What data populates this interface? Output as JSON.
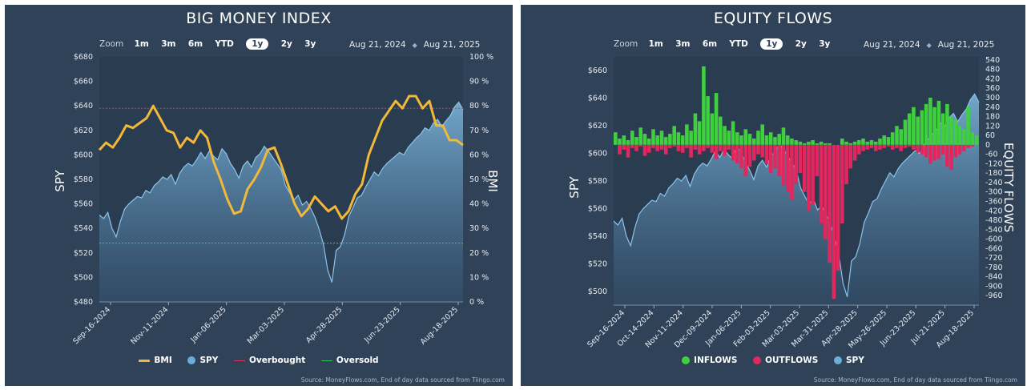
{
  "source_text": "Source: MoneyFlows.com, End of day data sourced from Tiingo.com",
  "zoom": {
    "label": "Zoom",
    "options": [
      "1m",
      "3m",
      "6m",
      "YTD",
      "1y",
      "2y",
      "3y"
    ],
    "active": "1y"
  },
  "range": {
    "from": "Aug 21, 2024",
    "to": "Aug 21, 2025"
  },
  "colors": {
    "bmi": "#f2b83a",
    "spy": "#6aaed9",
    "overbought": "#d9355f",
    "oversold": "#39c35a",
    "inflows": "#3fcf3f",
    "outflows": "#e0285f"
  },
  "chart_data": [
    {
      "type": "line",
      "title": "BIG MONEY INDEX",
      "ylabel": "SPY",
      "y2label": "BMI",
      "ylim": [
        480,
        680
      ],
      "y2lim": [
        0,
        100
      ],
      "y_ticks": [
        "$480",
        "$500",
        "$520",
        "$540",
        "$560",
        "$580",
        "$600",
        "$620",
        "$640",
        "$660",
        "$680"
      ],
      "y2_ticks": [
        "0 %",
        "10 %",
        "20 %",
        "30 %",
        "40 %",
        "50 %",
        "60 %",
        "70 %",
        "80 %",
        "90 %",
        "100 %"
      ],
      "x_ticks": [
        "Sep-16-2024",
        "Nov-11-2024",
        "Jan-06-2025",
        "Mar-03-2025",
        "Apr-28-2025",
        "Jun-23-2025",
        "Aug-18-2025"
      ],
      "legend_position": "bottom",
      "legend": [
        "BMI",
        "SPY",
        "Overbought",
        "Oversold"
      ],
      "overbought": 79,
      "oversold": 24,
      "series": [
        {
          "name": "SPY",
          "values": [
            551,
            548,
            553,
            540,
            533,
            546,
            556,
            560,
            563,
            566,
            565,
            571,
            569,
            575,
            578,
            582,
            580,
            584,
            576,
            585,
            590,
            593,
            591,
            596,
            602,
            597,
            603,
            599,
            596,
            605,
            601,
            593,
            588,
            581,
            591,
            595,
            590,
            598,
            601,
            607,
            603,
            598,
            593,
            588,
            575,
            569,
            563,
            567,
            559,
            562,
            556,
            549,
            539,
            527,
            506,
            496,
            522,
            525,
            535,
            550,
            557,
            565,
            567,
            574,
            580,
            586,
            583,
            589,
            593,
            596,
            599,
            602,
            600,
            606,
            610,
            614,
            617,
            622,
            620,
            626,
            629,
            623,
            628,
            632,
            639,
            643,
            637
          ]
        },
        {
          "name": "BMI",
          "values": [
            62,
            65,
            63,
            67,
            72,
            71,
            73,
            75,
            80,
            75,
            70,
            69,
            63,
            67,
            65,
            70,
            67,
            57,
            50,
            42,
            36,
            37,
            46,
            50,
            55,
            62,
            63,
            56,
            48,
            40,
            35,
            38,
            43,
            40,
            37,
            39,
            34,
            37,
            44,
            48,
            60,
            67,
            74,
            78,
            82,
            79,
            84,
            84,
            79,
            82,
            72,
            72,
            66,
            66,
            64
          ]
        }
      ]
    },
    {
      "type": "bar",
      "title": "EQUITY FLOWS",
      "ylabel": "SPY",
      "y2label": "EQUITY FLOWS",
      "ylim": [
        490,
        670
      ],
      "y2lim": [
        -1020,
        560
      ],
      "y_ticks": [
        "$500",
        "$520",
        "$540",
        "$560",
        "$580",
        "$600",
        "$620",
        "$640",
        "$660"
      ],
      "y2_ticks": [
        "540",
        "480",
        "420",
        "360",
        "300",
        "240",
        "180",
        "120",
        "60",
        "0",
        "-60",
        "-120",
        "-180",
        "-240",
        "-300",
        "-360",
        "-420",
        "-480",
        "-540",
        "-600",
        "-660",
        "-720",
        "-780",
        "-840",
        "-900",
        "-960"
      ],
      "x_ticks": [
        "Sep-16-2024",
        "Oct-14-2024",
        "Nov-11-2024",
        "Dec-09-2024",
        "Jan-06-2025",
        "Feb-03-2025",
        "Mar-03-2025",
        "Mar-31-2025",
        "Apr-28-2025",
        "May-26-2025",
        "Jun-23-2025",
        "Jul-21-2025",
        "Aug-18-2025"
      ],
      "legend_position": "bottom",
      "legend": [
        "INFLOWS",
        "OUTFLOWS",
        "SPY"
      ],
      "series": [
        {
          "name": "SPY",
          "values": [
            551,
            548,
            553,
            540,
            533,
            546,
            556,
            560,
            563,
            566,
            565,
            571,
            569,
            575,
            578,
            582,
            580,
            584,
            576,
            585,
            590,
            593,
            591,
            596,
            602,
            597,
            603,
            599,
            596,
            605,
            601,
            593,
            588,
            581,
            591,
            595,
            590,
            598,
            601,
            607,
            603,
            598,
            593,
            588,
            575,
            569,
            563,
            567,
            559,
            562,
            556,
            549,
            539,
            527,
            506,
            496,
            522,
            525,
            535,
            550,
            557,
            565,
            567,
            574,
            580,
            586,
            583,
            589,
            593,
            596,
            599,
            602,
            600,
            606,
            610,
            614,
            617,
            622,
            620,
            626,
            629,
            623,
            628,
            632,
            639,
            643,
            637
          ]
        },
        {
          "name": "INFLOWS",
          "values": [
            80,
            40,
            60,
            30,
            90,
            50,
            110,
            70,
            40,
            100,
            60,
            90,
            50,
            70,
            120,
            80,
            60,
            130,
            90,
            200,
            150,
            500,
            310,
            200,
            330,
            180,
            120,
            90,
            150,
            80,
            60,
            100,
            70,
            40,
            90,
            130,
            60,
            80,
            50,
            70,
            110,
            60,
            40,
            30,
            20,
            10,
            20,
            30,
            10,
            20,
            10,
            10,
            0,
            0,
            40,
            20,
            10,
            20,
            30,
            40,
            20,
            30,
            20,
            40,
            60,
            50,
            80,
            120,
            100,
            160,
            200,
            240,
            180,
            220,
            260,
            300,
            240,
            280,
            200,
            260,
            180,
            160,
            120,
            100,
            240,
            80,
            60
          ]
        },
        {
          "name": "OUTFLOWS",
          "values": [
            0,
            -60,
            -30,
            -80,
            -20,
            -40,
            -10,
            -70,
            -50,
            -20,
            -40,
            -30,
            -60,
            -20,
            -10,
            -40,
            -50,
            -20,
            -80,
            -30,
            -60,
            -40,
            -20,
            -50,
            -90,
            -40,
            -70,
            -30,
            -100,
            -120,
            -150,
            -200,
            -140,
            -100,
            -60,
            -80,
            -120,
            -180,
            -150,
            -200,
            -260,
            -300,
            -350,
            -250,
            -180,
            -300,
            -420,
            -380,
            -200,
            -500,
            -600,
            -750,
            -980,
            -800,
            -500,
            -250,
            -150,
            -100,
            -60,
            -40,
            -30,
            -20,
            -40,
            -30,
            -20,
            -10,
            -30,
            -20,
            -40,
            -20,
            -10,
            -30,
            -50,
            -60,
            -80,
            -120,
            -100,
            -90,
            -60,
            -140,
            -160,
            -80,
            -60,
            -40,
            -20,
            -10,
            0
          ]
        }
      ]
    }
  ]
}
